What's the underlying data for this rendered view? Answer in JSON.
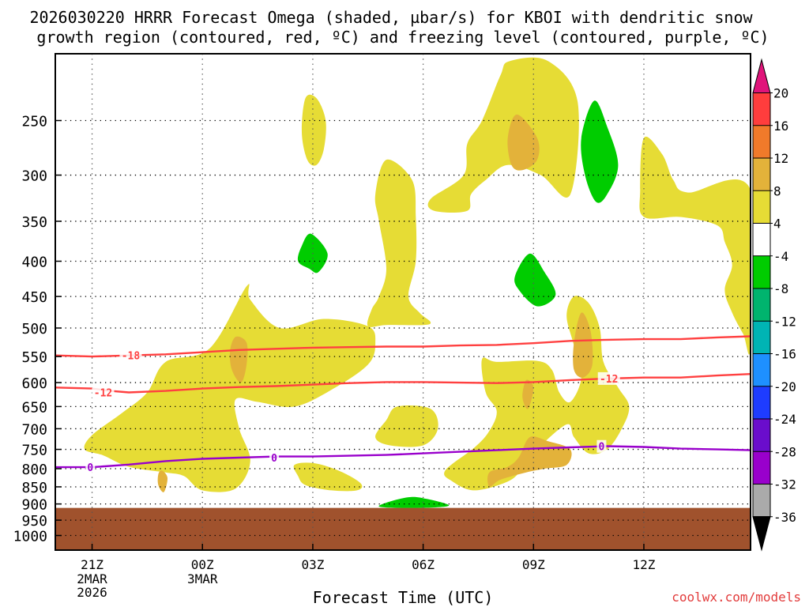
{
  "chart_data": {
    "type": "contour",
    "title_line1": "2026030220 HRRR Forecast Omega (shaded, µbar/s) for KBOI with dendritic snow",
    "title_line2": "growth region (contoured, red, ºC) and freezing level (contoured, purple, ºC)",
    "xlabel": "Forecast Time (UTC)",
    "credit": "coolwx.com/models",
    "x_range_hours": [
      -1,
      17.9
    ],
    "x_ticks": [
      {
        "hour": 0,
        "label": "21Z",
        "sub1": "2MAR",
        "sub2": "2026"
      },
      {
        "hour": 3,
        "label": "00Z",
        "sub1": "3MAR",
        "sub2": ""
      },
      {
        "hour": 6,
        "label": "03Z",
        "sub1": "",
        "sub2": ""
      },
      {
        "hour": 9,
        "label": "06Z",
        "sub1": "",
        "sub2": ""
      },
      {
        "hour": 12,
        "label": "09Z",
        "sub1": "",
        "sub2": ""
      },
      {
        "hour": 15,
        "label": "12Z",
        "sub1": "",
        "sub2": ""
      }
    ],
    "y_axis": "pressure (hPa), log scale, inverted",
    "y_range_hpa": [
      200,
      1050
    ],
    "y_ticks": [
      250,
      300,
      350,
      400,
      450,
      500,
      550,
      600,
      650,
      700,
      750,
      800,
      850,
      900,
      950,
      1000
    ],
    "y_tick_labels": [
      "250",
      "300",
      "350",
      "400",
      "450",
      "500",
      "550",
      "600",
      "650",
      "700",
      "750",
      "800",
      "850",
      "900",
      "950",
      "1000"
    ],
    "terrain_top_hpa": 912,
    "terrain_color": "#A0522D",
    "colorbar": {
      "levels": [
        "20",
        "16",
        "12",
        "8",
        "4",
        "-4",
        "-8",
        "-12",
        "-16",
        "-20",
        "-24",
        "-28",
        "-32",
        "-36"
      ],
      "colors": [
        "#ff3d3d",
        "#f07a2a",
        "#e3b23a",
        "#e6dc35",
        "#ffffff",
        "#00cc00",
        "#00b46e",
        "#00b4b4",
        "#1e90ff",
        "#1e3cff",
        "#6a0dcc",
        "#9900cc",
        "#aaaaaa"
      ],
      "top_arrow_color": "#e0147a",
      "bottom_arrow_color": "#000000"
    },
    "omega_regions": [
      {
        "band": "4 to 8",
        "color": "#e6dc35",
        "points": [
          [
            11.35,
            205
          ],
          [
            12.4,
            205
          ],
          [
            13.2,
            235
          ],
          [
            13,
            320
          ],
          [
            12.2,
            300
          ],
          [
            11.3,
            290
          ],
          [
            10.7,
            305
          ],
          [
            10.3,
            320
          ],
          [
            10.2,
            338
          ],
          [
            9.3,
            338
          ],
          [
            9.2,
            325
          ],
          [
            10.1,
            300
          ],
          [
            10.2,
            270
          ],
          [
            10.6,
            250
          ],
          [
            11.1,
            215
          ]
        ]
      },
      {
        "band": "4 to 8",
        "color": "#e6dc35",
        "points": [
          [
            8,
            285
          ],
          [
            8.7,
            305
          ],
          [
            8.8,
            345
          ],
          [
            8.8,
            400
          ],
          [
            8.6,
            450
          ],
          [
            8.9,
            475
          ],
          [
            9.2,
            490
          ],
          [
            9,
            495
          ],
          [
            8,
            495
          ],
          [
            7.5,
            497
          ],
          [
            7.6,
            470
          ],
          [
            7.8,
            450
          ],
          [
            8,
            410
          ],
          [
            7.8,
            350
          ],
          [
            7.7,
            320
          ]
        ]
      },
      {
        "band": "4 to 8",
        "color": "#e6dc35",
        "points": [
          [
            5.8,
            232
          ],
          [
            6.1,
            232
          ],
          [
            6.35,
            250
          ],
          [
            6.3,
            275
          ],
          [
            6.1,
            290
          ],
          [
            5.85,
            285
          ],
          [
            5.7,
            260
          ]
        ]
      },
      {
        "band": "4 to 8",
        "color": "#e6dc35",
        "points": [
          [
            15,
            265
          ],
          [
            15.5,
            280
          ],
          [
            15.8,
            305
          ],
          [
            16.2,
            318
          ],
          [
            17.9,
            315
          ],
          [
            17.9,
            530
          ],
          [
            17.7,
            510
          ],
          [
            17.4,
            475
          ],
          [
            17.2,
            440
          ],
          [
            17.4,
            405
          ],
          [
            17.2,
            375
          ],
          [
            17,
            355
          ],
          [
            16,
            345
          ],
          [
            15,
            345
          ],
          [
            14.9,
            315
          ]
        ]
      },
      {
        "band": "4 to 8",
        "color": "#e6dc35",
        "points": [
          [
            2,
            560
          ],
          [
            3.2,
            535
          ],
          [
            4.2,
            435
          ],
          [
            4.3,
            455
          ],
          [
            5.1,
            500
          ],
          [
            6.3,
            485
          ],
          [
            7.5,
            497
          ],
          [
            7.7,
            525
          ],
          [
            7.5,
            565
          ],
          [
            6.5,
            615
          ],
          [
            5.5,
            650
          ],
          [
            4.5,
            640
          ],
          [
            3.9,
            635
          ],
          [
            4,
            700
          ],
          [
            4.3,
            780
          ],
          [
            3.9,
            855
          ],
          [
            3,
            860
          ],
          [
            2.5,
            820
          ],
          [
            2,
            810
          ],
          [
            1,
            795
          ],
          [
            0.3,
            765
          ],
          [
            -0.2,
            750
          ],
          [
            0,
            715
          ],
          [
            0.8,
            665
          ],
          [
            1.5,
            620
          ]
        ]
      },
      {
        "band": "4 to 8",
        "color": "#e6dc35",
        "points": [
          [
            8.3,
            650
          ],
          [
            9.2,
            655
          ],
          [
            9.4,
            700
          ],
          [
            9,
            740
          ],
          [
            8.1,
            740
          ],
          [
            7.7,
            720
          ],
          [
            8,
            680
          ]
        ]
      },
      {
        "band": "4 to 8",
        "color": "#e6dc35",
        "points": [
          [
            5.5,
            790
          ],
          [
            6,
            785
          ],
          [
            6.7,
            805
          ],
          [
            7.3,
            840
          ],
          [
            7.2,
            860
          ],
          [
            6.5,
            860
          ],
          [
            5.8,
            845
          ],
          [
            5.6,
            820
          ]
        ]
      },
      {
        "band": "4 to 8",
        "color": "#e6dc35",
        "points": [
          [
            10.6,
            555
          ],
          [
            11,
            560
          ],
          [
            12.1,
            558
          ],
          [
            12.5,
            575
          ],
          [
            12.7,
            620
          ],
          [
            13,
            640
          ],
          [
            13.3,
            590
          ],
          [
            13.1,
            530
          ],
          [
            12.9,
            480
          ],
          [
            13.1,
            450
          ],
          [
            13.5,
            460
          ],
          [
            13.8,
            500
          ],
          [
            13.9,
            560
          ],
          [
            14.3,
            610
          ],
          [
            14.6,
            650
          ],
          [
            14.4,
            700
          ],
          [
            14,
            750
          ],
          [
            13.5,
            760
          ],
          [
            13.1,
            720
          ],
          [
            12.9,
            690
          ],
          [
            12.1,
            750
          ],
          [
            11.7,
            800
          ],
          [
            11.3,
            835
          ],
          [
            10.4,
            860
          ],
          [
            9.8,
            835
          ],
          [
            9.6,
            805
          ],
          [
            10.4,
            745
          ],
          [
            10.8,
            705
          ],
          [
            11,
            660
          ],
          [
            10.7,
            620
          ]
        ]
      },
      {
        "band": "8 to 12",
        "color": "#e3b23a",
        "points": [
          [
            11.55,
            245
          ],
          [
            12.1,
            265
          ],
          [
            12.1,
            285
          ],
          [
            11.7,
            295
          ],
          [
            11.4,
            290
          ],
          [
            11.3,
            265
          ]
        ]
      },
      {
        "band": "8 to 12",
        "color": "#e3b23a",
        "points": [
          [
            3.9,
            515
          ],
          [
            4.2,
            525
          ],
          [
            4.2,
            565
          ],
          [
            4.05,
            600
          ],
          [
            3.8,
            575
          ],
          [
            3.75,
            540
          ]
        ]
      },
      {
        "band": "8 to 12",
        "color": "#e3b23a",
        "points": [
          [
            1.9,
            805
          ],
          [
            2.05,
            825
          ],
          [
            1.95,
            865
          ],
          [
            1.8,
            845
          ],
          [
            1.8,
            815
          ]
        ]
      },
      {
        "band": "8 to 12",
        "color": "#e3b23a",
        "points": [
          [
            11.9,
            720
          ],
          [
            12.4,
            730
          ],
          [
            13,
            750
          ],
          [
            12.9,
            790
          ],
          [
            12.3,
            800
          ],
          [
            11.8,
            810
          ],
          [
            11.1,
            830
          ],
          [
            10.8,
            850
          ],
          [
            10.8,
            810
          ],
          [
            11.3,
            795
          ],
          [
            11.6,
            770
          ]
        ]
      },
      {
        "band": "8 to 12",
        "color": "#e3b23a",
        "points": [
          [
            11.8,
            595
          ],
          [
            12,
            610
          ],
          [
            11.85,
            655
          ],
          [
            11.7,
            630
          ]
        ]
      },
      {
        "band": "8 to 12",
        "color": "#e3b23a",
        "points": [
          [
            13.3,
            475
          ],
          [
            13.55,
            505
          ],
          [
            13.6,
            565
          ],
          [
            13.35,
            590
          ],
          [
            13.1,
            575
          ],
          [
            13.1,
            525
          ]
        ]
      },
      {
        "band": "-4 to -8",
        "color": "#00cc00",
        "points": [
          [
            5.95,
            365
          ],
          [
            6.4,
            390
          ],
          [
            6.15,
            415
          ],
          [
            5.9,
            410
          ],
          [
            5.6,
            400
          ],
          [
            5.7,
            380
          ]
        ]
      },
      {
        "band": "-4 to -8",
        "color": "#00cc00",
        "points": [
          [
            11.9,
            390
          ],
          [
            12.3,
            415
          ],
          [
            12.6,
            448
          ],
          [
            12.1,
            465
          ],
          [
            11.6,
            440
          ],
          [
            11.5,
            420
          ]
        ]
      },
      {
        "band": "-4 to -8",
        "color": "#00cc00",
        "points": [
          [
            13.65,
            234
          ],
          [
            14,
            255
          ],
          [
            14.3,
            290
          ],
          [
            14,
            320
          ],
          [
            13.7,
            328
          ],
          [
            13.4,
            300
          ],
          [
            13.3,
            265
          ]
        ]
      },
      {
        "band": "-4 to -8",
        "color": "#00cc00",
        "points": [
          [
            8.6,
            880
          ],
          [
            9.1,
            885
          ],
          [
            9.7,
            905
          ],
          [
            8.9,
            912
          ],
          [
            7.9,
            910
          ],
          [
            7.9,
            900
          ]
        ]
      }
    ],
    "contours": [
      {
        "name": "dendritic -18 isotherm",
        "color": "#ff4040",
        "label": "-18",
        "label_hour": 1.05,
        "points": [
          [
            -1,
            548
          ],
          [
            0,
            550
          ],
          [
            1,
            548
          ],
          [
            2,
            546
          ],
          [
            3,
            542
          ],
          [
            4,
            538
          ],
          [
            5,
            536
          ],
          [
            6,
            534
          ],
          [
            7,
            533
          ],
          [
            8,
            532
          ],
          [
            9,
            532
          ],
          [
            10,
            530
          ],
          [
            11,
            529
          ],
          [
            12,
            526
          ],
          [
            13,
            522
          ],
          [
            14,
            520
          ],
          [
            15,
            519
          ],
          [
            16,
            519
          ],
          [
            17,
            516
          ],
          [
            17.9,
            514
          ]
        ]
      },
      {
        "name": "dendritic -12 isotherm",
        "color": "#ff4040",
        "label": "-12",
        "label_hour": 14.05,
        "points": [
          [
            -1,
            610
          ],
          [
            0,
            612
          ],
          [
            0.5,
            617
          ],
          [
            1,
            620
          ],
          [
            2,
            617
          ],
          [
            3,
            612
          ],
          [
            4,
            609
          ],
          [
            5,
            607
          ],
          [
            6,
            604
          ],
          [
            7,
            601
          ],
          [
            8,
            599
          ],
          [
            9,
            599
          ],
          [
            10,
            600
          ],
          [
            11,
            601
          ],
          [
            12,
            599
          ],
          [
            13,
            595
          ],
          [
            14,
            592
          ],
          [
            15,
            590
          ],
          [
            16,
            590
          ],
          [
            17,
            586
          ],
          [
            17.9,
            583
          ]
        ]
      },
      {
        "name": "freezing level 0 isotherm",
        "color": "#9900cc",
        "label": "0",
        "label_hour": 13.85,
        "points": [
          [
            -1,
            796
          ],
          [
            0,
            796
          ],
          [
            1,
            789
          ],
          [
            2,
            780
          ],
          [
            3,
            774
          ],
          [
            4,
            771
          ],
          [
            5,
            768
          ],
          [
            6,
            768
          ],
          [
            7,
            766
          ],
          [
            8,
            764
          ],
          [
            9,
            760
          ],
          [
            10,
            756
          ],
          [
            11,
            752
          ],
          [
            12,
            748
          ],
          [
            13,
            745
          ],
          [
            14,
            742
          ],
          [
            15,
            744
          ],
          [
            16,
            748
          ],
          [
            17,
            750
          ],
          [
            17.9,
            752
          ]
        ]
      }
    ],
    "contour_extra_labels": [
      {
        "text": "-12",
        "hour": 0.3,
        "hpa": 620,
        "color": "#ff4040"
      },
      {
        "text": "0",
        "hour": -0.05,
        "hpa": 796,
        "color": "#9900cc"
      },
      {
        "text": "0",
        "hour": 4.95,
        "hpa": 771,
        "color": "#9900cc"
      }
    ]
  }
}
